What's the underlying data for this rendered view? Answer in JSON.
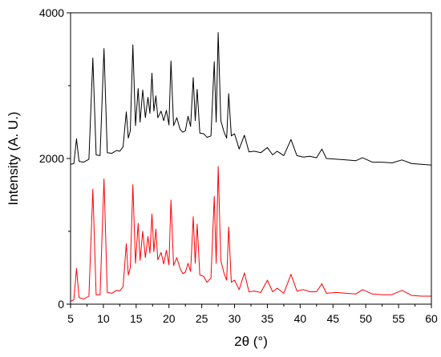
{
  "chart_data": {
    "type": "line",
    "xlabel": "2θ (°)",
    "ylabel": "Intensity (A. U.)",
    "xlim": [
      5,
      60
    ],
    "ylim": [
      0,
      4000
    ],
    "x_ticks": [
      5,
      10,
      15,
      20,
      25,
      30,
      35,
      40,
      45,
      50,
      55,
      60
    ],
    "x_tick_labels": [
      "5",
      "10",
      "15",
      "20",
      "25",
      "30",
      "35",
      "40",
      "45",
      "50",
      "55",
      "60"
    ],
    "y_ticks": [
      0,
      2000,
      4000
    ],
    "y_tick_labels": [
      "0",
      "2000",
      "4000"
    ],
    "grid": false,
    "legend": "none",
    "series": [
      {
        "color": "#000000",
        "values": [
          [
            5.0,
            1920
          ],
          [
            5.5,
            1930
          ],
          [
            5.9,
            2270
          ],
          [
            6.3,
            1960
          ],
          [
            7.0,
            1950
          ],
          [
            7.8,
            1990
          ],
          [
            8.4,
            3380
          ],
          [
            8.9,
            2050
          ],
          [
            9.5,
            2040
          ],
          [
            10.1,
            3510
          ],
          [
            10.6,
            2080
          ],
          [
            11.3,
            2070
          ],
          [
            12.0,
            2110
          ],
          [
            12.5,
            2100
          ],
          [
            13.0,
            2160
          ],
          [
            13.5,
            2640
          ],
          [
            13.8,
            2280
          ],
          [
            14.1,
            2380
          ],
          [
            14.5,
            3560
          ],
          [
            14.9,
            2450
          ],
          [
            15.3,
            2960
          ],
          [
            15.6,
            2500
          ],
          [
            16.0,
            2940
          ],
          [
            16.4,
            2560
          ],
          [
            16.8,
            2840
          ],
          [
            17.1,
            2620
          ],
          [
            17.4,
            3170
          ],
          [
            17.7,
            2650
          ],
          [
            18.0,
            2860
          ],
          [
            18.3,
            2560
          ],
          [
            18.8,
            2650
          ],
          [
            19.2,
            2520
          ],
          [
            19.6,
            2660
          ],
          [
            20.0,
            2460
          ],
          [
            20.3,
            3340
          ],
          [
            20.7,
            2450
          ],
          [
            21.2,
            2560
          ],
          [
            21.7,
            2400
          ],
          [
            22.1,
            2360
          ],
          [
            22.5,
            2380
          ],
          [
            22.9,
            2580
          ],
          [
            23.3,
            2440
          ],
          [
            23.7,
            3110
          ],
          [
            24.0,
            2520
          ],
          [
            24.3,
            2950
          ],
          [
            24.7,
            2350
          ],
          [
            25.3,
            2340
          ],
          [
            25.8,
            2290
          ],
          [
            26.4,
            2310
          ],
          [
            26.9,
            3330
          ],
          [
            27.2,
            2500
          ],
          [
            27.5,
            3730
          ],
          [
            27.9,
            2520
          ],
          [
            28.4,
            2360
          ],
          [
            28.8,
            2280
          ],
          [
            29.1,
            2890
          ],
          [
            29.5,
            2310
          ],
          [
            30.0,
            2340
          ],
          [
            30.7,
            2130
          ],
          [
            31.5,
            2320
          ],
          [
            32.2,
            2090
          ],
          [
            33.0,
            2100
          ],
          [
            34.0,
            2080
          ],
          [
            35.0,
            2150
          ],
          [
            35.8,
            2050
          ],
          [
            36.5,
            2100
          ],
          [
            37.5,
            2040
          ],
          [
            38.6,
            2260
          ],
          [
            39.5,
            2040
          ],
          [
            40.5,
            2020
          ],
          [
            41.5,
            2030
          ],
          [
            42.5,
            2010
          ],
          [
            43.3,
            2130
          ],
          [
            44.0,
            2000
          ],
          [
            45.5,
            1990
          ],
          [
            47.0,
            1980
          ],
          [
            48.5,
            1970
          ],
          [
            49.5,
            2010
          ],
          [
            51.0,
            1950
          ],
          [
            52.5,
            1950
          ],
          [
            54.0,
            1940
          ],
          [
            55.5,
            1980
          ],
          [
            57.0,
            1930
          ],
          [
            58.5,
            1920
          ],
          [
            60.0,
            1910
          ]
        ]
      },
      {
        "color": "#ff0000",
        "values": [
          [
            5.0,
            40
          ],
          [
            5.5,
            60
          ],
          [
            5.9,
            490
          ],
          [
            6.3,
            90
          ],
          [
            7.0,
            70
          ],
          [
            7.8,
            110
          ],
          [
            8.4,
            1580
          ],
          [
            8.9,
            130
          ],
          [
            9.5,
            130
          ],
          [
            10.1,
            1720
          ],
          [
            10.6,
            160
          ],
          [
            11.3,
            150
          ],
          [
            12.0,
            190
          ],
          [
            12.5,
            180
          ],
          [
            13.0,
            240
          ],
          [
            13.5,
            830
          ],
          [
            13.8,
            400
          ],
          [
            14.1,
            500
          ],
          [
            14.5,
            1640
          ],
          [
            14.9,
            560
          ],
          [
            15.3,
            1110
          ],
          [
            15.6,
            600
          ],
          [
            16.0,
            1000
          ],
          [
            16.4,
            640
          ],
          [
            16.8,
            930
          ],
          [
            17.1,
            700
          ],
          [
            17.4,
            1240
          ],
          [
            17.7,
            720
          ],
          [
            18.0,
            1030
          ],
          [
            18.3,
            610
          ],
          [
            18.8,
            710
          ],
          [
            19.2,
            550
          ],
          [
            19.6,
            740
          ],
          [
            20.0,
            540
          ],
          [
            20.3,
            1430
          ],
          [
            20.7,
            530
          ],
          [
            21.2,
            640
          ],
          [
            21.7,
            490
          ],
          [
            22.1,
            420
          ],
          [
            22.5,
            440
          ],
          [
            22.9,
            560
          ],
          [
            23.3,
            450
          ],
          [
            23.7,
            1200
          ],
          [
            24.0,
            560
          ],
          [
            24.3,
            1100
          ],
          [
            24.7,
            400
          ],
          [
            25.3,
            380
          ],
          [
            25.8,
            300
          ],
          [
            26.4,
            360
          ],
          [
            26.9,
            1480
          ],
          [
            27.2,
            560
          ],
          [
            27.5,
            1890
          ],
          [
            27.9,
            600
          ],
          [
            28.4,
            420
          ],
          [
            28.8,
            330
          ],
          [
            29.1,
            1060
          ],
          [
            29.5,
            300
          ],
          [
            30.0,
            330
          ],
          [
            30.7,
            200
          ],
          [
            31.5,
            430
          ],
          [
            32.2,
            170
          ],
          [
            33.0,
            180
          ],
          [
            34.0,
            160
          ],
          [
            35.0,
            330
          ],
          [
            35.8,
            170
          ],
          [
            36.5,
            220
          ],
          [
            37.5,
            150
          ],
          [
            38.6,
            410
          ],
          [
            39.5,
            180
          ],
          [
            40.5,
            200
          ],
          [
            41.5,
            170
          ],
          [
            42.5,
            170
          ],
          [
            43.3,
            280
          ],
          [
            44.0,
            150
          ],
          [
            45.5,
            160
          ],
          [
            47.0,
            150
          ],
          [
            48.5,
            140
          ],
          [
            49.5,
            200
          ],
          [
            51.0,
            140
          ],
          [
            52.5,
            130
          ],
          [
            54.0,
            130
          ],
          [
            55.5,
            190
          ],
          [
            57.0,
            120
          ],
          [
            58.5,
            110
          ],
          [
            60.0,
            110
          ]
        ]
      }
    ]
  }
}
